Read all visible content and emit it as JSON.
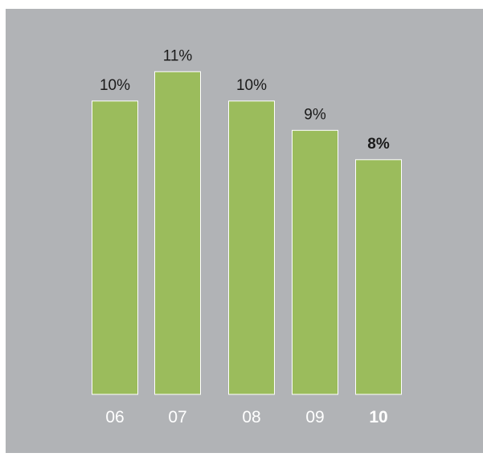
{
  "chart_data": {
    "type": "bar",
    "categories": [
      "06",
      "07",
      "08",
      "09",
      "10"
    ],
    "values": [
      10,
      11,
      10,
      9,
      8
    ],
    "value_labels": [
      "10%",
      "11%",
      "10%",
      "9%",
      "8%"
    ],
    "highlight_index": 4,
    "ylim": [
      0,
      11.5
    ],
    "grid": false,
    "colors": {
      "background": "#b1b3b6",
      "bar": "#9bbc5c",
      "bar_outline": "#ffffff",
      "value_text": "#1a1a1a",
      "tick_text": "#ffffff"
    }
  }
}
